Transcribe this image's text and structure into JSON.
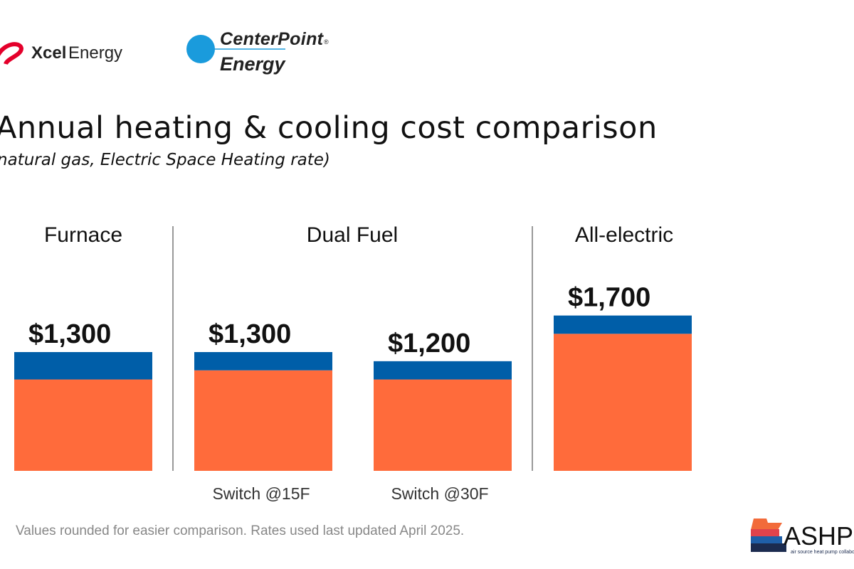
{
  "logos": {
    "xcel": "Xcel Energy",
    "centerpoint": "CenterPoint Energy",
    "ashp": "ASHP air source heat pump collaborative"
  },
  "colors": {
    "segment_bottom": "#FF6B3B",
    "segment_top": "#005EA8"
  },
  "chart_data": {
    "type": "bar",
    "stacked": true,
    "title": "Annual heating & cooling cost comparison",
    "subtitle": "natural gas, Electric Space Heating rate)",
    "groups": [
      {
        "label": "Furnace",
        "bars": [
          0
        ]
      },
      {
        "label": "Dual Fuel",
        "bars": [
          1,
          2
        ]
      },
      {
        "label": "All-electric",
        "bars": [
          3
        ]
      }
    ],
    "categories": [
      "",
      "Switch @15F",
      "Switch @30F",
      ""
    ],
    "data_labels": [
      "$1,300",
      "$1,300",
      "$1,200",
      "$1,700"
    ],
    "series": [
      {
        "values": [
          1000,
          1100,
          1000,
          1500
        ],
        "color": "#FF6B3B"
      },
      {
        "values": [
          300,
          200,
          200,
          200
        ],
        "color": "#005EA8"
      }
    ],
    "ylim": [
      0,
      1700
    ],
    "grid": false,
    "footnote": "Values rounded for easier comparison. Rates used last updated April 2025."
  }
}
